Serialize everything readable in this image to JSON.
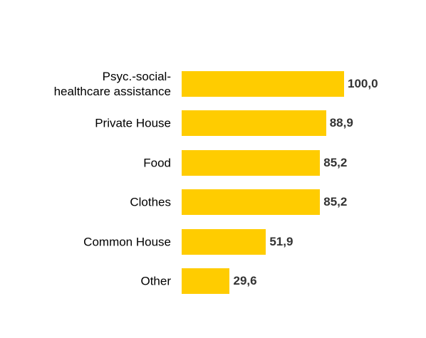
{
  "chart_data": {
    "type": "bar",
    "orientation": "horizontal",
    "categories": [
      "Psyc.-social-\nhealthcare assistance",
      "Private House",
      "Food",
      "Clothes",
      "Common House",
      "Other"
    ],
    "values": [
      100.0,
      88.9,
      85.2,
      85.2,
      51.9,
      29.6
    ],
    "value_labels": [
      "100,0",
      "88,9",
      "85,2",
      "85,2",
      "51,9",
      "29,6"
    ],
    "color": "#ffcc00",
    "xlim": [
      0,
      100
    ]
  }
}
